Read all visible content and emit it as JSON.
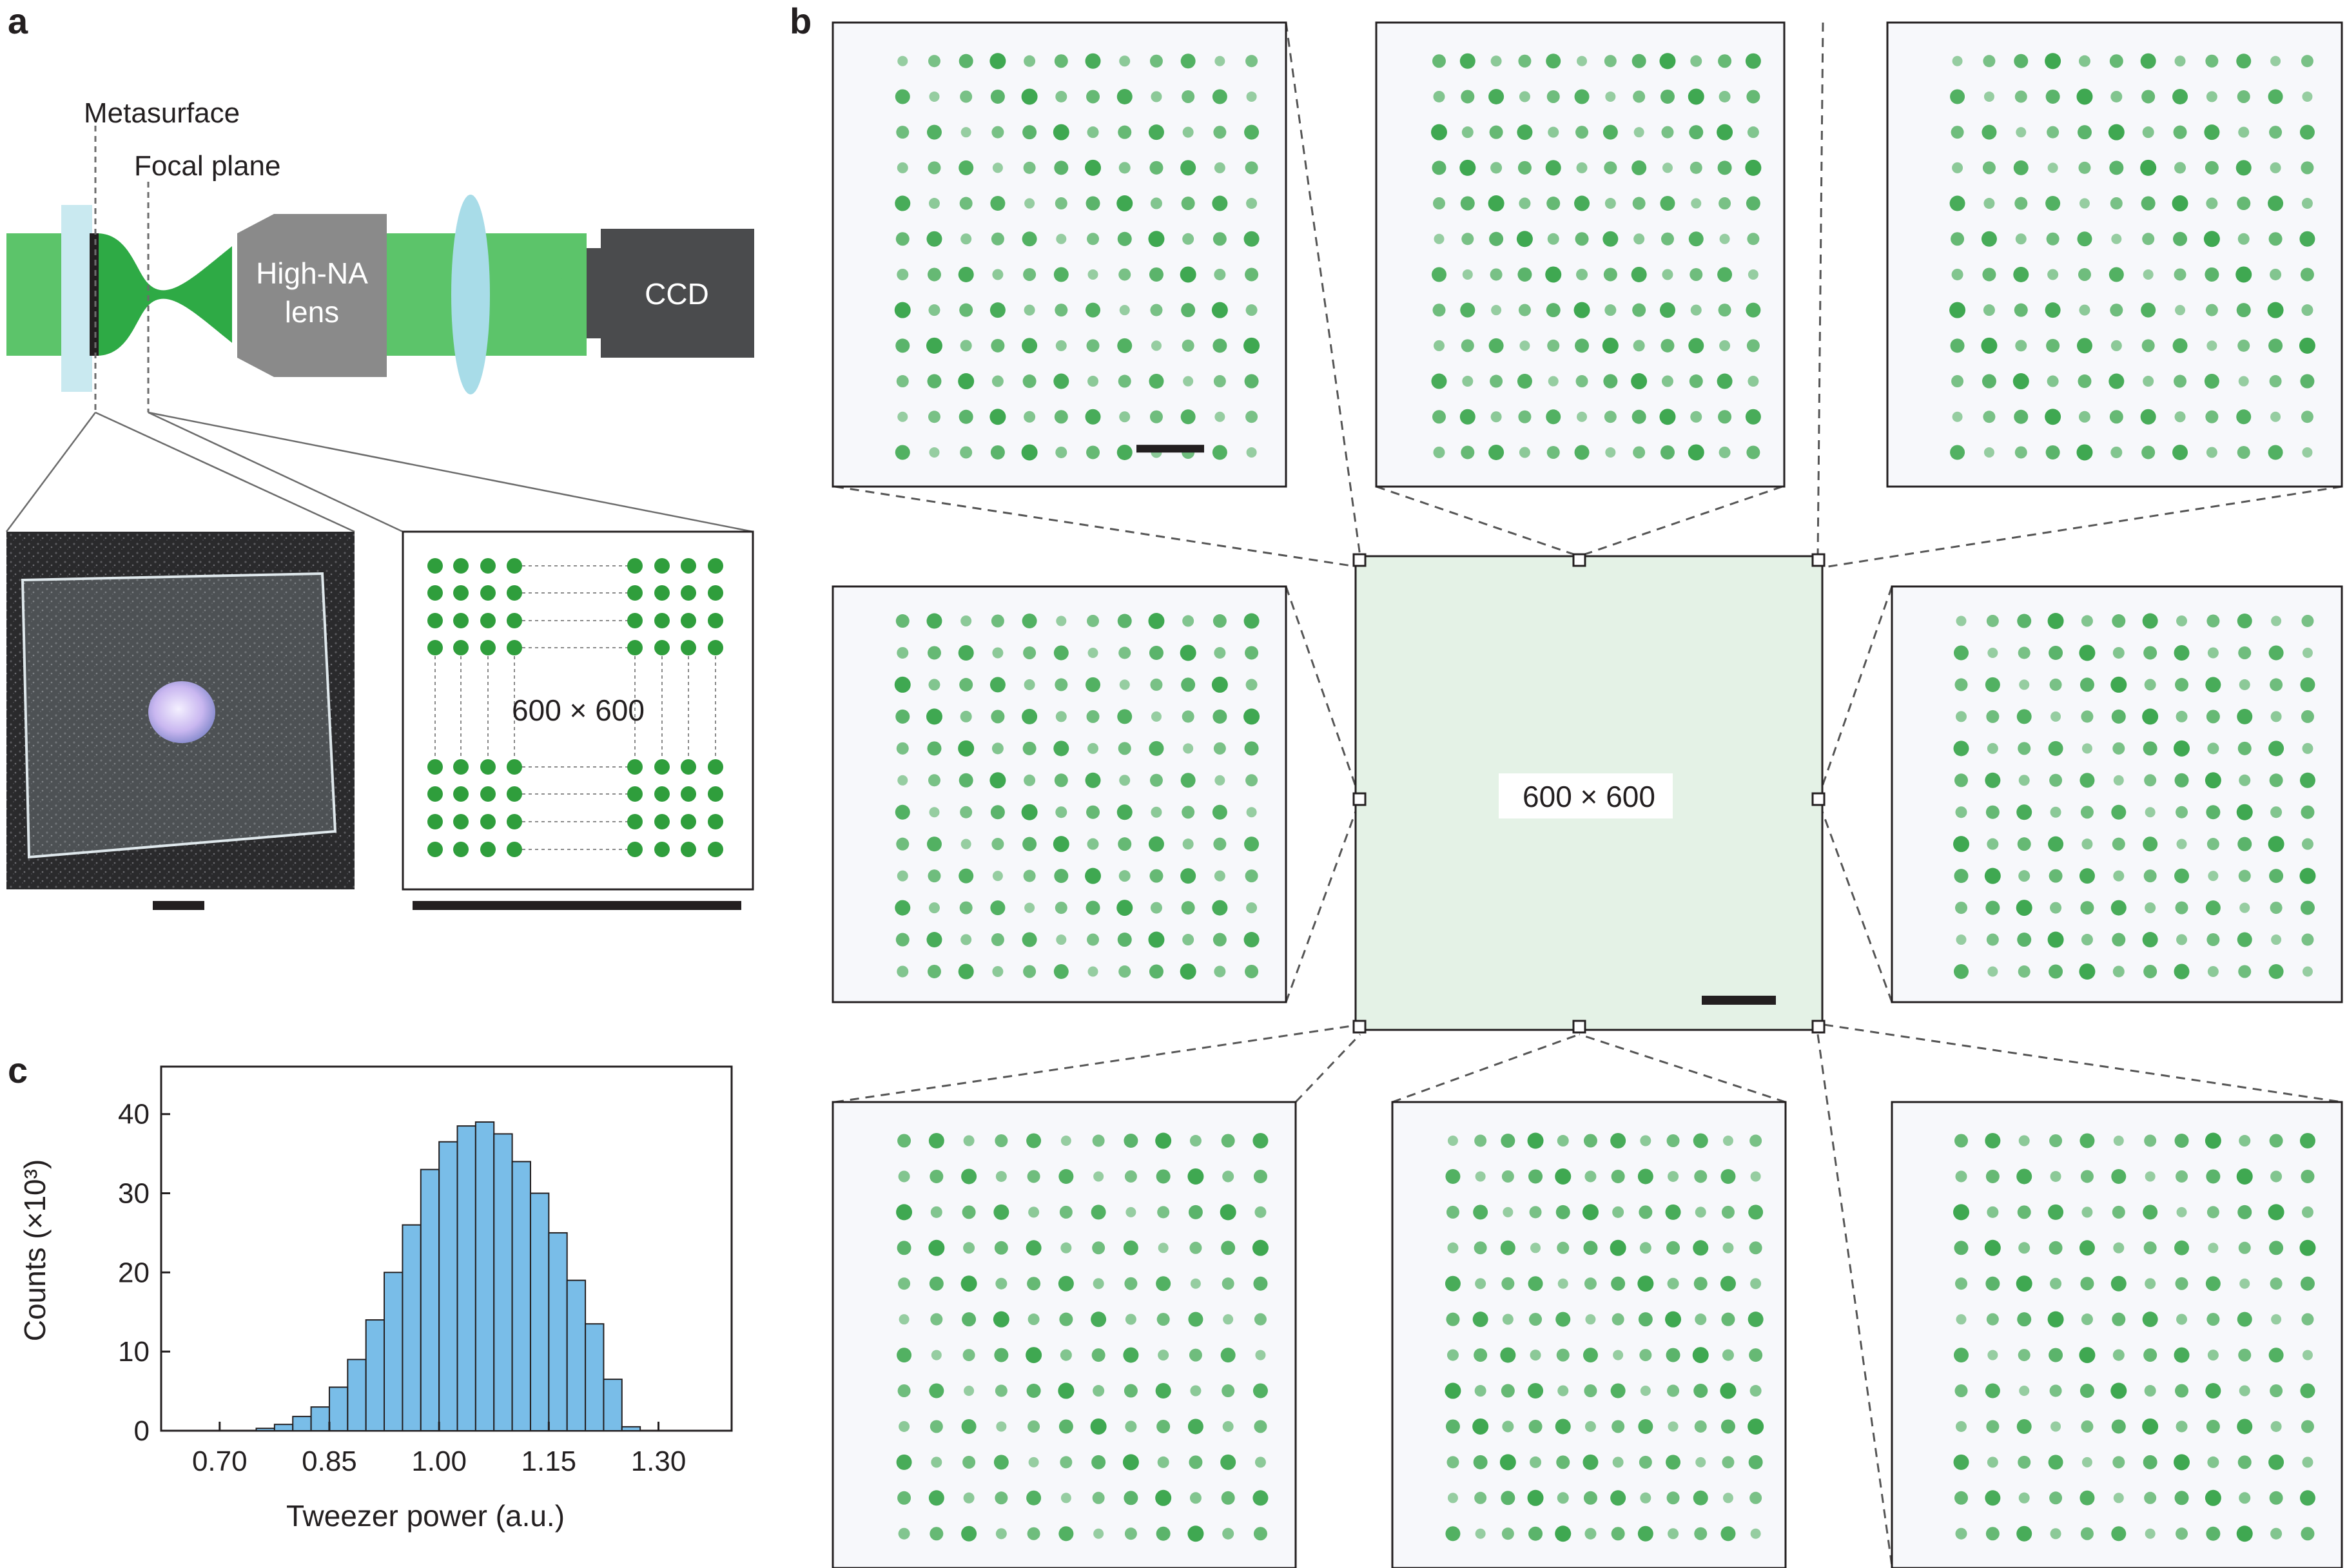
{
  "panel_a": {
    "letter": "a",
    "labels": {
      "metasurface": "Metasurface",
      "focal_plane": "Focal plane",
      "lens_line1": "High-NA",
      "lens_line2": "lens",
      "ccd": "CCD",
      "array_size": "600 × 600"
    },
    "colors": {
      "beam": "#5cc46a",
      "beam_dark": "#2eaa45",
      "lens_body": "#8a8a8a",
      "ccd_body": "#4a4b4d",
      "tube_lens": "#a8dce8",
      "substrate": "#c9e9f0",
      "tweezer_dot": "#2f9e3c"
    }
  },
  "panel_b": {
    "letter": "b",
    "center_label": "600 × 600",
    "colors": {
      "center_fill": "#e4f2e6",
      "spot": "#1f9a33",
      "zoom_bg": "#f7f8fb"
    },
    "zoom_grid": {
      "rows": 12,
      "cols": 12
    }
  },
  "panel_c": {
    "letter": "c",
    "chart_data": {
      "type": "bar",
      "title": "",
      "xlabel": "Tweezer power (a.u.)",
      "ylabel": "Counts (×10³)",
      "xlim": [
        0.62,
        1.4
      ],
      "ylim": [
        0,
        46
      ],
      "xticks": [
        "0.70",
        "0.85",
        "1.00",
        "1.15",
        "1.30"
      ],
      "xtick_values": [
        0.7,
        0.85,
        1.0,
        1.15,
        1.3
      ],
      "yticks": [
        "0",
        "10",
        "20",
        "30",
        "40"
      ],
      "ytick_values": [
        0,
        10,
        20,
        30,
        40
      ],
      "bin_width": 0.025,
      "bin_centers": [
        0.7625,
        0.7875,
        0.8125,
        0.8375,
        0.8625,
        0.8875,
        0.9125,
        0.9375,
        0.9625,
        0.9875,
        1.0125,
        1.0375,
        1.0625,
        1.0875,
        1.1125,
        1.1375,
        1.1625,
        1.1875,
        1.2125,
        1.2375,
        1.2625
      ],
      "values": [
        0.3,
        0.8,
        1.8,
        3.0,
        5.5,
        9.0,
        14.0,
        20.0,
        26.0,
        33.0,
        36.5,
        38.5,
        39.0,
        37.5,
        34.0,
        30.0,
        25.0,
        19.0,
        13.5,
        6.5,
        0.5
      ],
      "grid": false,
      "bar_color": "#79bde8",
      "edge_color": "#231f20"
    }
  }
}
